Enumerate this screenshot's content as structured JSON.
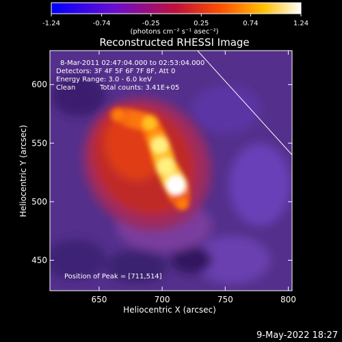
{
  "chart_data": {
    "type": "heatmap",
    "title": "Reconstructed RHESSI Image",
    "xlabel": "Heliocentric X (arcsec)",
    "ylabel": "Heliocentric Y (arcsec)",
    "xlim": [
      611,
      803
    ],
    "ylim": [
      424,
      629
    ],
    "x_ticks": [
      650,
      700,
      750,
      800
    ],
    "y_ticks": [
      450,
      500,
      550,
      600
    ],
    "colorbar": {
      "ticks": [
        "-1.24",
        "-0.74",
        "-0.25",
        "0.25",
        "0.74",
        "1.24"
      ],
      "min": -1.24,
      "max": 1.24,
      "unit_label": "(photons cm⁻² s⁻¹ asec⁻²)"
    },
    "annotations": {
      "time_range": "8-Mar-2011 02:47:04.000 to 02:53:04.000",
      "detectors": "Detectors: 3F 4F 5F 6F 7F 8F, Att 0",
      "energy": "Energy Range: 3.0 - 6.0 keV",
      "method": "Clean",
      "counts": "Total counts: 3.41E+05",
      "peak": "Position of Peak = [711,514]"
    },
    "peak": {
      "x": 711,
      "y": 514
    },
    "limb_line": [
      [
        728,
        629
      ],
      [
        803,
        540
      ]
    ],
    "source_ridge": [
      {
        "x": 665,
        "y": 574,
        "intensity": 0.62
      },
      {
        "x": 690,
        "y": 567,
        "intensity": 0.8
      },
      {
        "x": 698,
        "y": 548,
        "intensity": 0.98
      },
      {
        "x": 703,
        "y": 530,
        "intensity": 1.1
      },
      {
        "x": 711,
        "y": 514,
        "intensity": 1.24
      },
      {
        "x": 716,
        "y": 498,
        "intensity": 0.55
      }
    ],
    "background_level": -0.35
  },
  "timestamp": "9-May-2022 18:27"
}
